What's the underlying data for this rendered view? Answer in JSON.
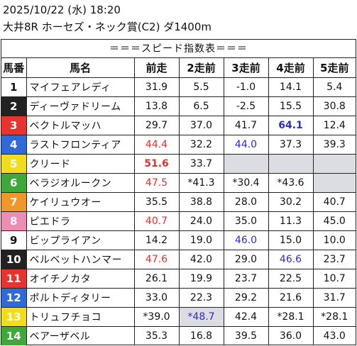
{
  "header": {
    "line1": "2025/10/22 (水) 18:20",
    "line2": "大井8R ホーセズ・ネック賞(C2) ダ1400m"
  },
  "table": {
    "title": "＝＝＝スピード指数表＝＝＝",
    "columns": [
      "馬番",
      "馬名",
      "前走",
      "2走前",
      "3走前",
      "4走前",
      "5走前"
    ],
    "rows": [
      {
        "num": "1",
        "name": "マイフェアレディ",
        "bg": "#ffffff",
        "fg": "#111111",
        "cells": [
          {
            "v": "31.9"
          },
          {
            "v": "5.5"
          },
          {
            "v": "-1.0"
          },
          {
            "v": "14.1"
          },
          {
            "v": "5.4"
          }
        ]
      },
      {
        "num": "2",
        "name": "ディーヴァドリーム",
        "bg": "#222222",
        "fg": "#ffffff",
        "cells": [
          {
            "v": "13.8"
          },
          {
            "v": "6.5"
          },
          {
            "v": "-2.5"
          },
          {
            "v": "15.5"
          },
          {
            "v": "30.8"
          }
        ]
      },
      {
        "num": "3",
        "name": "ベクトルマッハ",
        "bg": "#e8332e",
        "fg": "#ffffff",
        "cells": [
          {
            "v": "29.7"
          },
          {
            "v": "37.0"
          },
          {
            "v": "41.7"
          },
          {
            "v": "64.1",
            "c": "bold-blue"
          },
          {
            "v": "12.4"
          }
        ]
      },
      {
        "num": "4",
        "name": "ラストフロンティア",
        "bg": "#2f6ad8",
        "fg": "#ffffff",
        "cells": [
          {
            "v": "44.4",
            "c": "red"
          },
          {
            "v": "32.2"
          },
          {
            "v": "44.0",
            "c": "blue"
          },
          {
            "v": "37.3"
          },
          {
            "v": "39.3"
          }
        ]
      },
      {
        "num": "5",
        "name": "クリード",
        "bg": "#f2dc1e",
        "fg": "#ffffff",
        "cells": [
          {
            "v": "51.6",
            "c": "bold-red"
          },
          {
            "v": "33.7"
          },
          {
            "v": "",
            "c": "empty"
          },
          {
            "v": "",
            "c": "empty"
          },
          {
            "v": "",
            "c": "empty"
          }
        ]
      },
      {
        "num": "6",
        "name": "ベラジオルークン",
        "bg": "#3fa83a",
        "fg": "#ffffff",
        "cells": [
          {
            "v": "47.5",
            "c": "red"
          },
          {
            "v": "*41.3"
          },
          {
            "v": "*30.4"
          },
          {
            "v": "*43.6"
          },
          {
            "v": "",
            "c": "empty"
          }
        ]
      },
      {
        "num": "7",
        "name": "ケイリュウオー",
        "bg": "#f0962a",
        "fg": "#ffffff",
        "cells": [
          {
            "v": "35.5"
          },
          {
            "v": "38.8"
          },
          {
            "v": "28.0"
          },
          {
            "v": "30.2"
          },
          {
            "v": "40.7"
          }
        ]
      },
      {
        "num": "8",
        "name": "ピエドラ",
        "bg": "#ee8db4",
        "fg": "#ffffff",
        "cells": [
          {
            "v": "40.7",
            "c": "red"
          },
          {
            "v": "24.0"
          },
          {
            "v": "35.0"
          },
          {
            "v": "11.3"
          },
          {
            "v": "45.0"
          }
        ]
      },
      {
        "num": "9",
        "name": "ビップライアン",
        "bg": "#ffffff",
        "fg": "#111111",
        "cells": [
          {
            "v": "14.2"
          },
          {
            "v": "19.0"
          },
          {
            "v": "46.0",
            "c": "blue"
          },
          {
            "v": "15.0"
          },
          {
            "v": "10.0"
          }
        ]
      },
      {
        "num": "10",
        "name": "ベルベットハンマー",
        "bg": "#222222",
        "fg": "#ffffff",
        "cells": [
          {
            "v": "47.6",
            "c": "red"
          },
          {
            "v": "42.0"
          },
          {
            "v": "29.0"
          },
          {
            "v": "46.6",
            "c": "blue"
          },
          {
            "v": "23.7"
          }
        ]
      },
      {
        "num": "11",
        "name": "オイチノカタ",
        "bg": "#e8332e",
        "fg": "#ffffff",
        "cells": [
          {
            "v": "26.1"
          },
          {
            "v": "19.9"
          },
          {
            "v": "23.7"
          },
          {
            "v": "22.5"
          },
          {
            "v": "10.7"
          }
        ]
      },
      {
        "num": "12",
        "name": "ポルトディタリー",
        "bg": "#2f6ad8",
        "fg": "#ffffff",
        "cells": [
          {
            "v": "33.0"
          },
          {
            "v": "22.3"
          },
          {
            "v": "29.2"
          },
          {
            "v": "21.6"
          },
          {
            "v": "31.7"
          }
        ]
      },
      {
        "num": "13",
        "name": "トリュフチョコ",
        "bg": "#f2dc1e",
        "fg": "#ffffff",
        "cells": [
          {
            "v": "*39.0"
          },
          {
            "v": "*48.7",
            "c": "blue shaded"
          },
          {
            "v": "42.4"
          },
          {
            "v": "*28.1"
          },
          {
            "v": "*28.1"
          }
        ]
      },
      {
        "num": "14",
        "name": "ベアーザベル",
        "bg": "#3fa83a",
        "fg": "#ffffff",
        "cells": [
          {
            "v": "35.3"
          },
          {
            "v": "16.8"
          },
          {
            "v": "39.5"
          },
          {
            "v": "36.0"
          },
          {
            "v": "43.0"
          }
        ]
      }
    ]
  }
}
